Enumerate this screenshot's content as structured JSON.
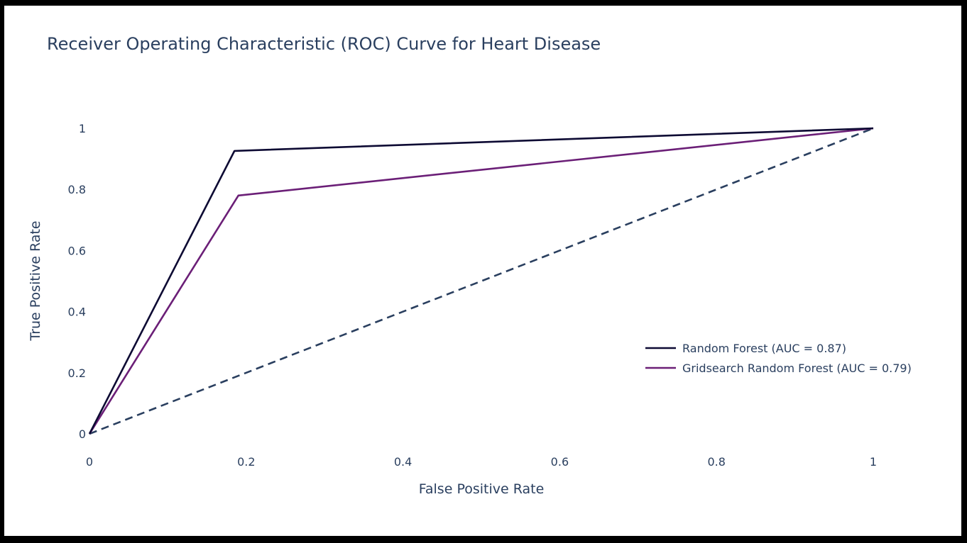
{
  "chart_data": {
    "type": "line",
    "title": "Receiver Operating Characteristic (ROC) Curve for Heart Disease",
    "xlabel": "False Positive Rate",
    "ylabel": "True Positive Rate",
    "xlim": [
      0,
      1
    ],
    "ylim": [
      0,
      1
    ],
    "xticks": [
      "0",
      "0.2",
      "0.4",
      "0.6",
      "0.8",
      "1"
    ],
    "yticks": [
      "0",
      "0.2",
      "0.4",
      "0.6",
      "0.8",
      "1"
    ],
    "grid": false,
    "legend_position": "bottom-right",
    "series": [
      {
        "name": "Random Forest (AUC = 0.87)",
        "x": [
          0,
          0.185,
          1
        ],
        "y": [
          0,
          0.926,
          1
        ],
        "color": "#0d0a33",
        "dash": "solid"
      },
      {
        "name": "Gridsearch Random Forest (AUC = 0.79)",
        "x": [
          0,
          0.19,
          1
        ],
        "y": [
          0,
          0.78,
          1
        ],
        "color": "#6b1f77",
        "dash": "solid"
      },
      {
        "x": [
          0,
          1
        ],
        "y": [
          0,
          1
        ],
        "color": "#2a3f5f",
        "dash": "dash"
      }
    ]
  }
}
